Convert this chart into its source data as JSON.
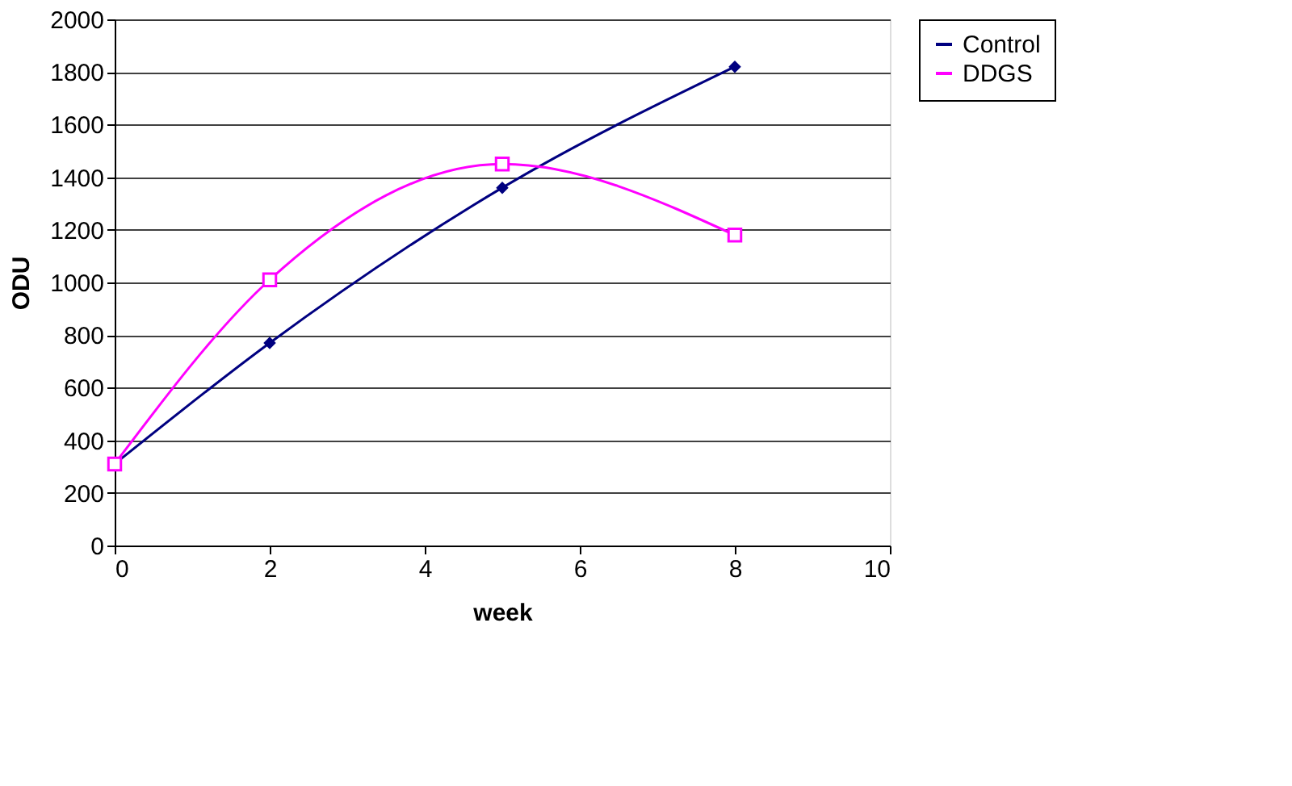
{
  "chart_data": {
    "type": "line",
    "xlabel": "week",
    "ylabel": "ODU",
    "x": [
      0,
      2,
      5,
      8
    ],
    "series": [
      {
        "name": "Control",
        "color": "#000080",
        "marker": "diamond",
        "values": [
          310,
          770,
          1360,
          1820
        ]
      },
      {
        "name": "DDGS",
        "color": "#ff00ff",
        "marker": "square",
        "values": [
          310,
          1010,
          1450,
          1180
        ]
      }
    ],
    "xlim": [
      0,
      10
    ],
    "xticks": [
      0,
      2,
      4,
      6,
      8,
      10
    ],
    "ylim": [
      0,
      2000
    ],
    "yticks": [
      0,
      200,
      400,
      600,
      800,
      1000,
      1200,
      1400,
      1600,
      1800,
      2000
    ],
    "grid": "y",
    "legend": "right",
    "line_style": "solid"
  }
}
